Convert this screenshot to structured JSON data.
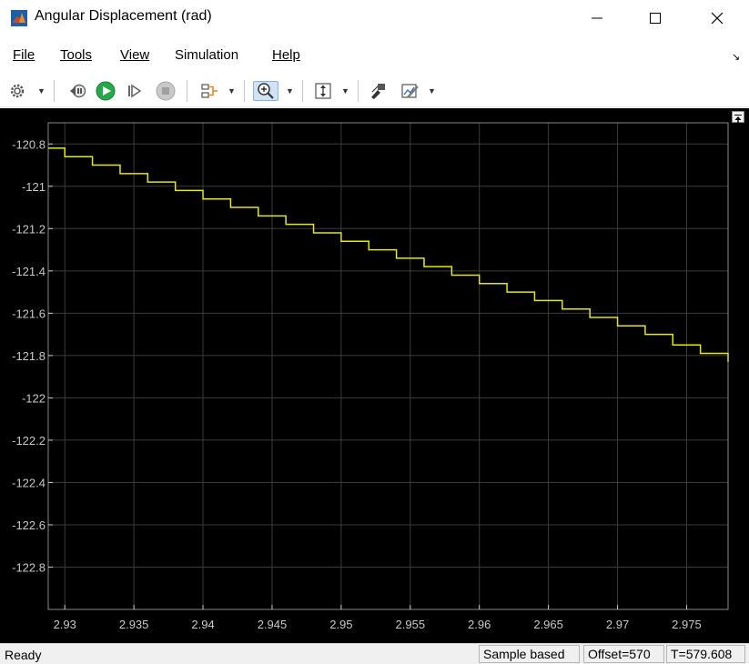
{
  "window": {
    "title": "Angular Displacement (rad)",
    "minimize_icon": "minimize-icon",
    "maximize_icon": "maximize-icon",
    "close_icon": "close-icon"
  },
  "menu": {
    "items": [
      {
        "label": "File"
      },
      {
        "label": "Tools"
      },
      {
        "label": "View"
      },
      {
        "label": "Simulation"
      },
      {
        "label": "Help"
      }
    ]
  },
  "toolbar": {
    "buttons": [
      "settings-icon",
      "step-back-icon",
      "run-icon",
      "step-forward-icon",
      "stop-icon",
      "signal-select-icon",
      "zoom-in-icon",
      "autoscale-icon",
      "highlight-block-icon",
      "style-icon"
    ]
  },
  "status": {
    "state": "Ready",
    "mode": "Sample based",
    "offset": "Offset=570",
    "time": "T=579.608"
  },
  "colors": {
    "plot_background": "#000000",
    "grid": "#3c3c3c",
    "axis_labels": "#c8c8c8",
    "signal": "#e6e619",
    "run_button": "#27a94a"
  },
  "chart_data": {
    "type": "line",
    "title": "",
    "xlabel": "",
    "ylabel": "",
    "xlim": [
      2.9288,
      2.978
    ],
    "ylim": [
      -123,
      -120.7
    ],
    "grid": true,
    "xticks": [
      2.93,
      2.935,
      2.94,
      2.945,
      2.95,
      2.955,
      2.96,
      2.965,
      2.97,
      2.975
    ],
    "xtick_labels": [
      "2.93",
      "2.935",
      "2.94",
      "2.945",
      "2.95",
      "2.955",
      "2.96",
      "2.965",
      "2.97",
      "2.975"
    ],
    "yticks": [
      -120.8,
      -121,
      -121.2,
      -121.4,
      -121.6,
      -121.8,
      -122,
      -122.2,
      -122.4,
      -122.6,
      -122.8
    ],
    "ytick_labels": [
      "-120.8",
      "-121",
      "-121.2",
      "-121.4",
      "-121.6",
      "-121.8",
      "-122",
      "-122.2",
      "-122.4",
      "-122.6",
      "-122.8"
    ],
    "series": [
      {
        "step": true,
        "color": "#e6e619",
        "x": [
          2.928,
          2.93,
          2.932,
          2.934,
          2.936,
          2.938,
          2.94,
          2.942,
          2.944,
          2.946,
          2.948,
          2.95,
          2.952,
          2.954,
          2.956,
          2.958,
          2.96,
          2.962,
          2.964,
          2.966,
          2.968,
          2.97,
          2.972,
          2.974,
          2.976,
          2.978
        ],
        "y": [
          -120.82,
          -120.86,
          -120.9,
          -120.94,
          -120.98,
          -121.02,
          -121.06,
          -121.1,
          -121.14,
          -121.18,
          -121.22,
          -121.26,
          -121.3,
          -121.34,
          -121.38,
          -121.42,
          -121.46,
          -121.5,
          -121.54,
          -121.58,
          -121.62,
          -121.66,
          -121.7,
          -121.75,
          -121.79,
          -121.83
        ]
      }
    ]
  }
}
